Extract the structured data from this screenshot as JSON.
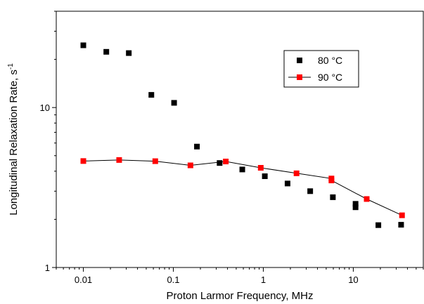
{
  "chart_data": {
    "type": "scatter",
    "xlabel": "Proton Larmor Frequency, MHz",
    "ylabel": "Longitudinal Relaxation Rate, s",
    "ylabel_superscript": "-1",
    "x_scale": "log",
    "y_scale": "log",
    "xlim": [
      0.005,
      60
    ],
    "ylim": [
      1,
      40
    ],
    "x_ticks": [
      {
        "value": 0.01,
        "label": "0.01"
      },
      {
        "value": 0.1,
        "label": "0.1"
      },
      {
        "value": 1,
        "label": "1"
      },
      {
        "value": 10,
        "label": "10"
      }
    ],
    "y_ticks": [
      {
        "value": 1,
        "label": "1"
      },
      {
        "value": 10,
        "label": "10"
      }
    ],
    "grid": false,
    "legend_position": "top-right",
    "series": [
      {
        "name": "80 °C",
        "color": "#000000",
        "marker": "square",
        "line": false,
        "points": [
          {
            "x": 0.01,
            "y": 24.5
          },
          {
            "x": 0.018,
            "y": 22.3
          },
          {
            "x": 0.032,
            "y": 21.9
          },
          {
            "x": 0.057,
            "y": 12.0
          },
          {
            "x": 0.102,
            "y": 10.7
          },
          {
            "x": 0.183,
            "y": 5.7
          },
          {
            "x": 0.327,
            "y": 4.5
          },
          {
            "x": 0.584,
            "y": 4.1
          },
          {
            "x": 1.04,
            "y": 3.72
          },
          {
            "x": 1.86,
            "y": 3.35
          },
          {
            "x": 3.32,
            "y": 3.0
          },
          {
            "x": 5.93,
            "y": 2.75
          },
          {
            "x": 10.6,
            "y": 2.5
          },
          {
            "x": 10.6,
            "y": 2.38
          },
          {
            "x": 19.0,
            "y": 1.84
          },
          {
            "x": 34.0,
            "y": 1.85
          }
        ]
      },
      {
        "name": "90 °C",
        "color": "#ff0000",
        "marker": "square",
        "line": true,
        "line_color": "#000000",
        "points": [
          {
            "x": 0.01,
            "y": 4.63
          },
          {
            "x": 0.025,
            "y": 4.7
          },
          {
            "x": 0.063,
            "y": 4.62
          },
          {
            "x": 0.155,
            "y": 4.35
          },
          {
            "x": 0.383,
            "y": 4.6
          },
          {
            "x": 0.937,
            "y": 4.2
          },
          {
            "x": 2.34,
            "y": 3.88
          },
          {
            "x": 5.72,
            "y": 3.6
          },
          {
            "x": 5.72,
            "y": 3.5
          },
          {
            "x": 14.1,
            "y": 2.68
          },
          {
            "x": 34.8,
            "y": 2.12
          }
        ]
      }
    ]
  }
}
